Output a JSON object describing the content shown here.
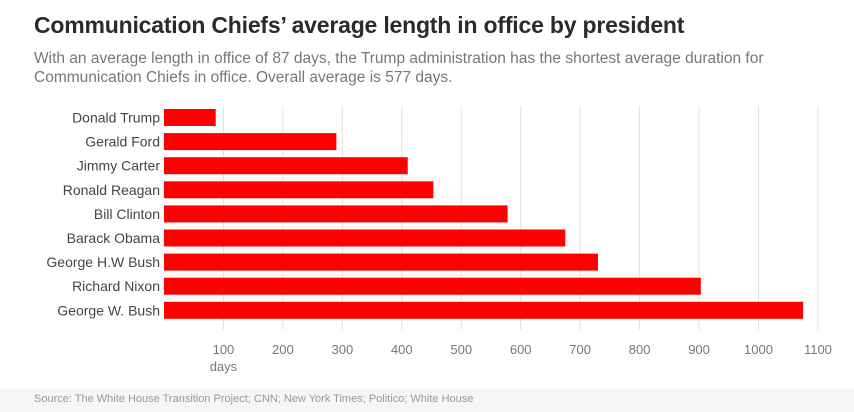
{
  "header": {
    "title": "Communication Chiefs’ average length in office by president",
    "subtitle": "With an average length in office of 87 days, the Trump administration has the shortest average duration for Communication Chiefs in office. Overall average is 577 days."
  },
  "footer": {
    "source": "Source: The White House Transition Project; CNN; New York Times; Politico; White House"
  },
  "chart_data": {
    "type": "bar",
    "orientation": "horizontal",
    "categories": [
      "Donald Trump",
      "Gerald Ford",
      "Jimmy Carter",
      "Ronald Reagan",
      "Bill Clinton",
      "Barack Obama",
      "George H.W Bush",
      "Richard Nixon",
      "George W. Bush"
    ],
    "values": [
      87,
      290,
      410,
      453,
      578,
      675,
      730,
      903,
      1075
    ],
    "xticks": [
      100,
      200,
      300,
      400,
      500,
      600,
      700,
      800,
      900,
      1000,
      1100
    ],
    "xlim": [
      0,
      1100
    ],
    "xunit": "days",
    "bar_color": "#ff0000",
    "grid": true
  }
}
